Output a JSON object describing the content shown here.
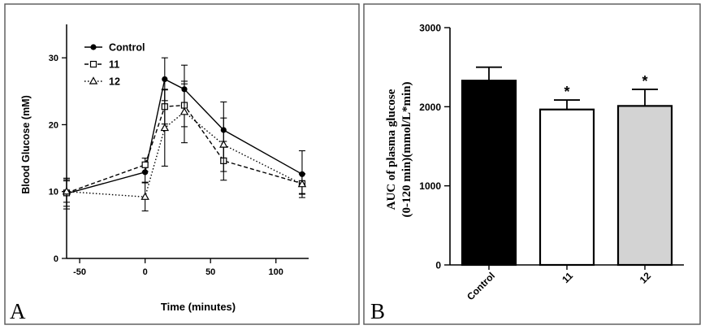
{
  "panels": {
    "a_letter": "A",
    "b_letter": "B"
  },
  "chart_data": [
    {
      "type": "line",
      "title": "",
      "xlabel": "Time (minutes)",
      "ylabel": "Blood Glucose (mM)",
      "xlim": [
        -60,
        125
      ],
      "ylim": [
        0,
        35
      ],
      "xticks": [
        -50,
        0,
        50,
        100
      ],
      "yticks": [
        0,
        10,
        20,
        30
      ],
      "grid": false,
      "legend_position": "top-left",
      "x": [
        -60,
        0,
        15,
        30,
        60,
        120
      ],
      "series": [
        {
          "name": "Control",
          "marker": "circle-filled",
          "line": "solid",
          "values": [
            9.7,
            12.9,
            26.8,
            25.3,
            19.2,
            12.6
          ],
          "err": [
            2.3,
            1.5,
            3.2,
            3.6,
            4.2,
            3.5
          ]
        },
        {
          "name": "11",
          "marker": "square-open",
          "line": "dashed",
          "values": [
            9.8,
            14.0,
            22.7,
            22.9,
            14.6,
            11.2
          ],
          "err": [
            2.0,
            1.0,
            2.6,
            3.2,
            2.9,
            1.5
          ]
        },
        {
          "name": "12",
          "marker": "triangle-open",
          "line": "dotted",
          "values": [
            10.0,
            9.2,
            19.5,
            21.9,
            17.0,
            11.1
          ],
          "err": [
            1.6,
            2.1,
            5.7,
            4.6,
            4.0,
            1.5
          ]
        }
      ]
    },
    {
      "type": "bar",
      "title": "",
      "xlabel": "",
      "ylabel_line1": "AUC of plasma glucose",
      "ylabel_line2": "(0-120 min)(mmol/L*min)",
      "ylim": [
        0,
        3000
      ],
      "yticks": [
        0,
        1000,
        2000,
        3000
      ],
      "grid": false,
      "categories": [
        "Control",
        "11",
        "12"
      ],
      "values": [
        2330,
        1965,
        2010
      ],
      "err": [
        170,
        120,
        210
      ],
      "bar_colors": [
        "#000000",
        "#ffffff",
        "#d3d3d3"
      ],
      "annotations": [
        "",
        "*",
        "*"
      ]
    }
  ]
}
